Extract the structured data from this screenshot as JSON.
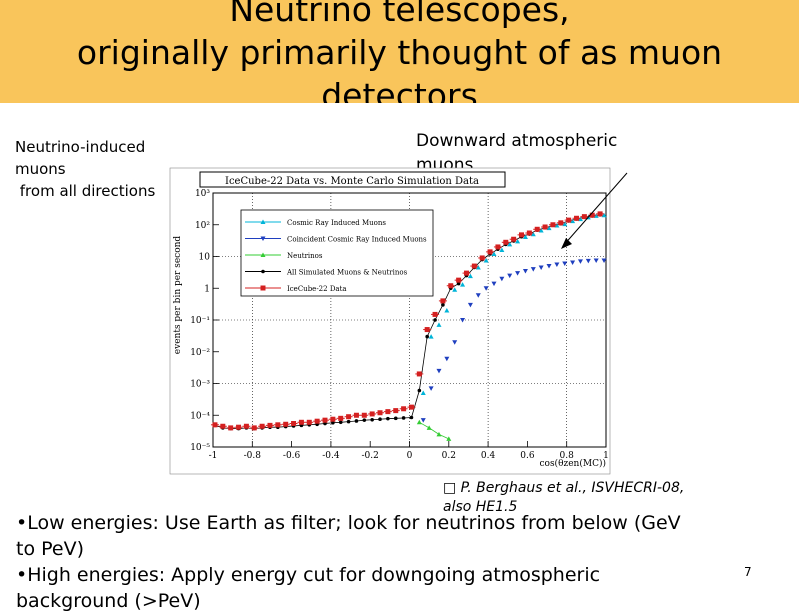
{
  "slide": {
    "title_lines": [
      "Neutrino telescopes,",
      "originally primarily thought of as muon",
      "detectors"
    ],
    "annotation_left": [
      "Neutrino-induced",
      "muons",
      " from all directions"
    ],
    "annotation_right": [
      "Downward atmospheric",
      "muons"
    ],
    "citation_lines": [
      "□ P. Berghaus et al.,  ISVHECRI-08,",
      "also HE1.5"
    ],
    "bullets": [
      "•Low energies: Use Earth as filter; look for neutrinos from below (GeV",
      "to  PeV)",
      "•High energies: Apply energy cut for downgoing atmospheric",
      "background (>PeV)"
    ],
    "page_number": "7",
    "title_bg_color": "#f9c55b"
  },
  "chart_data": {
    "type": "scatter",
    "title": "IceCube-22 Data vs. Monte Carlo Simulation Data",
    "xlabel": "cos(θzen(MC))",
    "ylabel": "events per bin per second",
    "xlim": [
      -1,
      1
    ],
    "ylim": [
      1e-05,
      1000
    ],
    "log_y": true,
    "grid": true,
    "x_ticks": [
      "-1",
      "-0.8",
      "-0.6",
      "-0.4",
      "-0.2",
      "0",
      "0.2",
      "0.4",
      "0.6",
      "0.8",
      "1"
    ],
    "y_ticks": [
      "10⁻⁵",
      "10⁻⁴",
      "10⁻³",
      "10⁻²",
      "10⁻¹",
      "1",
      "10",
      "10²",
      "10³"
    ],
    "legend_position": "top-left",
    "series": [
      {
        "name": "Cosmic Ray Induced Muons",
        "color": "#00b4d8",
        "marker": "triangle-up",
        "x": [
          0.07,
          0.11,
          0.15,
          0.19,
          0.23,
          0.27,
          0.31,
          0.35,
          0.39,
          0.43,
          0.47,
          0.51,
          0.55,
          0.59,
          0.63,
          0.67,
          0.71,
          0.75,
          0.79,
          0.83,
          0.87,
          0.91,
          0.95,
          0.99
        ],
        "y": [
          0.0005,
          0.03,
          0.07,
          0.2,
          0.9,
          1.3,
          2.4,
          4.5,
          7.5,
          12,
          16,
          24,
          30,
          41,
          50,
          66,
          78,
          95,
          105,
          130,
          150,
          170,
          190,
          200
        ]
      },
      {
        "name": "Coincident Cosmic Ray Induced Muons",
        "color": "#1f3fbf",
        "marker": "triangle-down",
        "x": [
          0.07,
          0.11,
          0.15,
          0.19,
          0.23,
          0.27,
          0.31,
          0.35,
          0.39,
          0.43,
          0.47,
          0.51,
          0.55,
          0.59,
          0.63,
          0.67,
          0.71,
          0.75,
          0.79,
          0.83,
          0.87,
          0.91,
          0.95,
          0.99
        ],
        "y": [
          7e-05,
          0.0007,
          0.0025,
          0.006,
          0.02,
          0.1,
          0.3,
          0.6,
          1.0,
          1.4,
          2.0,
          2.5,
          3.0,
          3.5,
          4.0,
          4.5,
          5.0,
          5.6,
          6.0,
          6.5,
          7.0,
          7.3,
          7.5,
          7.5
        ]
      },
      {
        "name": "Neutrinos",
        "color": "#33cc33",
        "marker": "triangle-up",
        "x": [
          0.05,
          0.1,
          0.15,
          0.2
        ],
        "y": [
          6e-05,
          4e-05,
          2.5e-05,
          1.8e-05
        ]
      },
      {
        "name": "All Simulated Muons & Neutrinos",
        "color": "#000000",
        "marker": "circle",
        "x": [
          -0.99,
          -0.95,
          -0.91,
          -0.87,
          -0.83,
          -0.79,
          -0.75,
          -0.71,
          -0.67,
          -0.63,
          -0.59,
          -0.55,
          -0.51,
          -0.47,
          -0.43,
          -0.39,
          -0.35,
          -0.31,
          -0.27,
          -0.23,
          -0.19,
          -0.15,
          -0.11,
          -0.07,
          -0.03,
          0.01,
          0.05,
          0.09,
          0.13,
          0.17,
          0.21,
          0.25,
          0.29,
          0.33,
          0.37,
          0.41,
          0.45,
          0.49,
          0.53,
          0.57,
          0.61,
          0.65,
          0.69,
          0.73,
          0.77,
          0.81,
          0.85,
          0.89,
          0.93,
          0.97
        ],
        "y": [
          4.8e-05,
          4e-05,
          3.8e-05,
          3.8e-05,
          4e-05,
          3.8e-05,
          4e-05,
          4.2e-05,
          4.2e-05,
          4.4e-05,
          4.6e-05,
          4.8e-05,
          5e-05,
          5.2e-05,
          5.5e-05,
          5.8e-05,
          6e-05,
          6.3e-05,
          6.6e-05,
          7e-05,
          7.2e-05,
          7.5e-05,
          7.8e-05,
          8e-05,
          8.2e-05,
          8.5e-05,
          0.0006,
          0.03,
          0.1,
          0.3,
          1.0,
          1.4,
          2.5,
          4.5,
          8,
          12,
          17,
          24,
          31,
          42,
          51,
          68,
          80,
          96,
          108,
          132,
          152,
          172,
          190,
          205
        ]
      },
      {
        "name": "IceCube-22 Data",
        "color": "#d42020",
        "marker": "square",
        "x": [
          -0.99,
          -0.95,
          -0.91,
          -0.87,
          -0.83,
          -0.79,
          -0.75,
          -0.71,
          -0.67,
          -0.63,
          -0.59,
          -0.55,
          -0.51,
          -0.47,
          -0.43,
          -0.39,
          -0.35,
          -0.31,
          -0.27,
          -0.23,
          -0.19,
          -0.15,
          -0.11,
          -0.07,
          -0.03,
          0.01,
          0.05,
          0.09,
          0.13,
          0.17,
          0.21,
          0.25,
          0.29,
          0.33,
          0.37,
          0.41,
          0.45,
          0.49,
          0.53,
          0.57,
          0.61,
          0.65,
          0.69,
          0.73,
          0.77,
          0.81,
          0.85,
          0.89,
          0.93,
          0.97
        ],
        "y": [
          5e-05,
          4.5e-05,
          4e-05,
          4.2e-05,
          4.5e-05,
          4e-05,
          4.5e-05,
          4.8e-05,
          5e-05,
          5.2e-05,
          5.5e-05,
          6e-05,
          6e-05,
          6.5e-05,
          7e-05,
          7.5e-05,
          8e-05,
          9e-05,
          0.0001,
          0.0001,
          0.00011,
          0.00012,
          0.00013,
          0.00014,
          0.00016,
          0.00018,
          0.002,
          0.05,
          0.15,
          0.4,
          1.2,
          1.8,
          3.0,
          5.0,
          9,
          14,
          20,
          28,
          35,
          48,
          55,
          72,
          85,
          100,
          115,
          140,
          160,
          180,
          200,
          220
        ]
      }
    ]
  }
}
